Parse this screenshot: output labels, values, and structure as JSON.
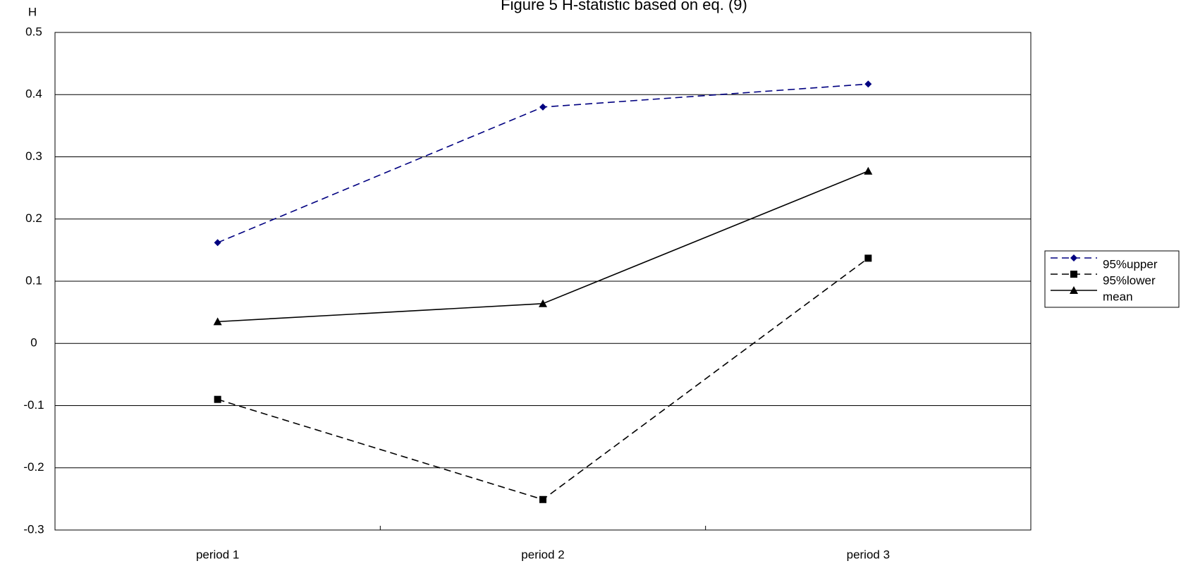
{
  "chart_data": {
    "type": "line",
    "title": "Figure 5  H-statistic based on eq. (9)",
    "y_label": "H",
    "categories": [
      "period 1",
      "period 2",
      "period 3"
    ],
    "series": [
      {
        "name": "95%upper",
        "color": "#000080",
        "dash": true,
        "marker": "diamond",
        "values": [
          0.162,
          0.38,
          0.417
        ]
      },
      {
        "name": "95%lower",
        "color": "#000000",
        "dash": true,
        "marker": "square",
        "values": [
          -0.09,
          -0.251,
          0.137
        ]
      },
      {
        "name": "mean",
        "color": "#000000",
        "dash": false,
        "marker": "triangle",
        "values": [
          0.035,
          0.064,
          0.277
        ]
      }
    ],
    "ylim": [
      -0.3,
      0.5
    ],
    "yticks": [
      -0.3,
      -0.2,
      -0.1,
      0,
      0.1,
      0.2,
      0.3,
      0.4,
      0.5
    ],
    "grid": true,
    "legend": "right"
  }
}
